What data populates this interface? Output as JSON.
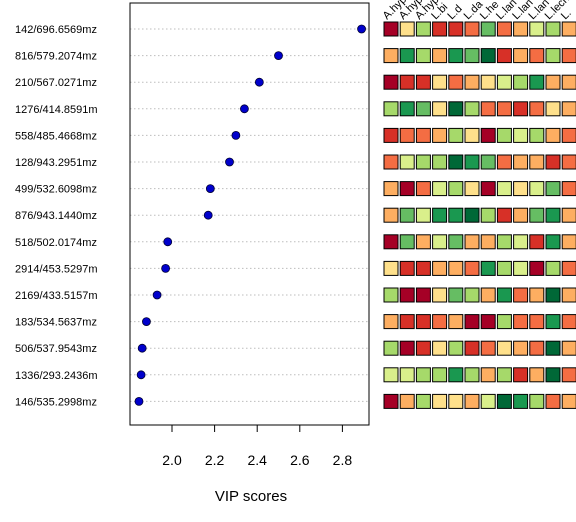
{
  "chart_data": {
    "type": "scatter",
    "xlabel": "VIP scores",
    "xlim": [
      1.8,
      2.9
    ],
    "xticks": [
      "2.0",
      "2.2",
      "2.4",
      "2.6",
      "2.8"
    ],
    "grid": "horizontal dotted",
    "marker_color": "#0000cc",
    "features": [
      {
        "label": "142/696.6569mz",
        "vip": 2.89
      },
      {
        "label": "816/579.2074mz",
        "vip": 2.5
      },
      {
        "label": "210/567.0271mz",
        "vip": 2.41
      },
      {
        "label": "1276/414.8591m",
        "vip": 2.34
      },
      {
        "label": "558/485.4668mz",
        "vip": 2.3
      },
      {
        "label": "128/943.2951mz",
        "vip": 2.27
      },
      {
        "label": "499/532.6098mz",
        "vip": 2.18
      },
      {
        "label": "876/943.1440mz",
        "vip": 2.17
      },
      {
        "label": "518/502.0174mz",
        "vip": 1.98
      },
      {
        "label": "2914/453.5297m",
        "vip": 1.97
      },
      {
        "label": "2169/433.5157m",
        "vip": 1.93
      },
      {
        "label": "183/534.5637mz",
        "vip": 1.88
      },
      {
        "label": "506/537.9543mz",
        "vip": 1.86
      },
      {
        "label": "1336/293.2436m",
        "vip": 1.855
      },
      {
        "label": "146/535.2998mz",
        "vip": 1.845
      }
    ],
    "heatmap": {
      "columns": [
        "A.hyp",
        "A.hyp",
        "A.hyp",
        "L.bi",
        "L.d",
        "L.da",
        "L.he",
        "L.lan",
        "L.lan",
        "L.lan",
        "L.lecht",
        "L."
      ],
      "palette": [
        "#a50026",
        "#d73027",
        "#f46d43",
        "#fdae61",
        "#fee08b",
        "#d9ef8b",
        "#a6d96a",
        "#66bd63",
        "#1a9850",
        "#006837"
      ],
      "cells": [
        [
          0,
          4,
          6,
          1,
          1,
          2,
          7,
          2,
          3,
          5,
          6,
          3
        ],
        [
          3,
          8,
          6,
          3,
          8,
          7,
          9,
          1,
          3,
          2,
          6,
          2
        ],
        [
          0,
          1,
          1,
          4,
          2,
          3,
          4,
          5,
          6,
          8,
          3,
          3
        ],
        [
          6,
          8,
          7,
          4,
          9,
          6,
          2,
          2,
          1,
          2,
          4,
          3
        ],
        [
          1,
          2,
          2,
          3,
          6,
          4,
          0,
          6,
          5,
          6,
          3,
          2
        ],
        [
          2,
          5,
          6,
          6,
          9,
          8,
          7,
          2,
          3,
          3,
          1,
          2
        ],
        [
          3,
          0,
          2,
          5,
          6,
          4,
          0,
          5,
          4,
          5,
          7,
          2
        ],
        [
          3,
          7,
          5,
          8,
          8,
          9,
          6,
          1,
          3,
          7,
          8,
          3
        ],
        [
          0,
          7,
          3,
          5,
          7,
          3,
          3,
          6,
          5,
          1,
          8,
          3
        ],
        [
          4,
          1,
          1,
          3,
          3,
          2,
          8,
          6,
          5,
          0,
          6,
          2
        ],
        [
          6,
          0,
          0,
          4,
          7,
          6,
          3,
          8,
          2,
          3,
          9,
          3
        ],
        [
          3,
          1,
          1,
          2,
          3,
          0,
          0,
          6,
          2,
          2,
          8,
          2
        ],
        [
          6,
          0,
          1,
          4,
          6,
          1,
          2,
          4,
          3,
          2,
          9,
          3
        ],
        [
          5,
          5,
          6,
          6,
          8,
          6,
          3,
          6,
          1,
          3,
          9,
          2
        ],
        [
          0,
          3,
          6,
          4,
          4,
          3,
          5,
          9,
          8,
          6,
          2,
          3
        ]
      ]
    }
  }
}
